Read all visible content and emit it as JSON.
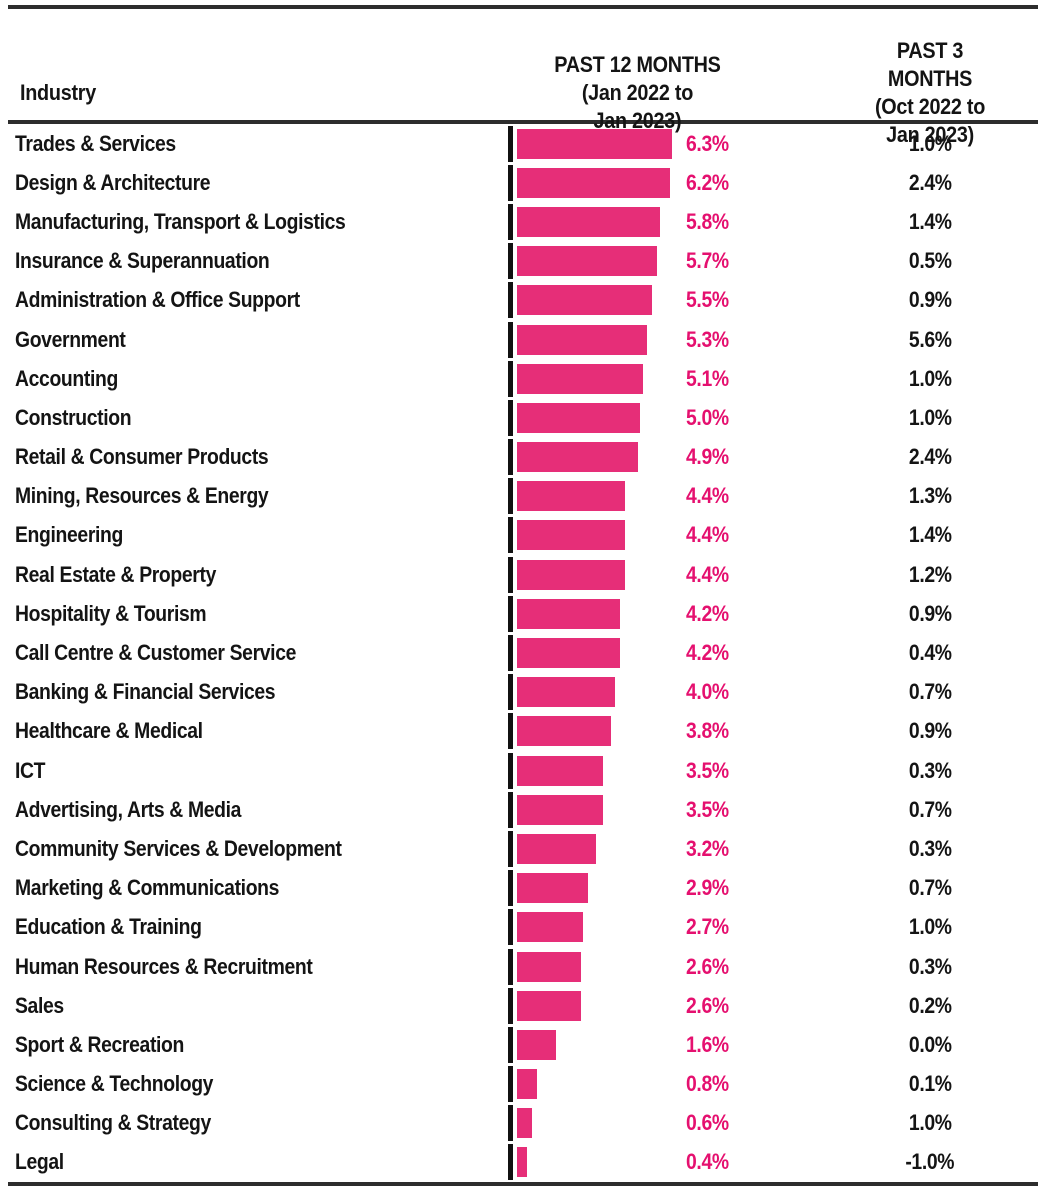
{
  "table": {
    "columns": {
      "industry": "Industry",
      "past12": "PAST 12 MONTHS\n(Jan 2022 to\nJan 2023)",
      "past3": "PAST 3 MONTHS\n(Oct 2022 to\nJan 2023)"
    }
  },
  "chart_data": {
    "type": "bar",
    "orientation": "horizontal",
    "unit": "%",
    "xlim": [
      0,
      6.3
    ],
    "bar_color": "#E62E78",
    "value_label_color": "#E5106F",
    "categories": [
      "Trades & Services",
      "Design & Architecture",
      "Manufacturing, Transport & Logistics",
      "Insurance & Superannuation",
      "Administration & Office Support",
      "Government",
      "Accounting",
      "Construction",
      "Retail & Consumer Products",
      "Mining, Resources & Energy",
      "Engineering",
      "Real Estate & Property",
      "Hospitality & Tourism",
      "Call Centre & Customer Service",
      "Banking & Financial Services",
      "Healthcare & Medical",
      "ICT",
      "Advertising, Arts & Media",
      "Community Services & Development",
      "Marketing & Communications",
      "Education & Training",
      "Human Resources & Recruitment",
      "Sales",
      "Sport & Recreation",
      "Science & Technology",
      "Consulting & Strategy",
      "Legal"
    ],
    "series": [
      {
        "name": "PAST 12 MONTHS (Jan 2022 to Jan 2023)",
        "values": [
          6.3,
          6.2,
          5.8,
          5.7,
          5.5,
          5.3,
          5.1,
          5.0,
          4.9,
          4.4,
          4.4,
          4.4,
          4.2,
          4.2,
          4.0,
          3.8,
          3.5,
          3.5,
          3.2,
          2.9,
          2.7,
          2.6,
          2.6,
          1.6,
          0.8,
          0.6,
          0.4
        ]
      },
      {
        "name": "PAST 3 MONTHS (Oct 2022 to Jan 2023)",
        "values": [
          1.0,
          2.4,
          1.4,
          0.5,
          0.9,
          5.6,
          1.0,
          1.0,
          2.4,
          1.3,
          1.4,
          1.2,
          0.9,
          0.4,
          0.7,
          0.9,
          0.3,
          0.7,
          0.3,
          0.7,
          1.0,
          0.3,
          0.2,
          0.0,
          0.1,
          1.0,
          -1.0
        ]
      }
    ]
  }
}
